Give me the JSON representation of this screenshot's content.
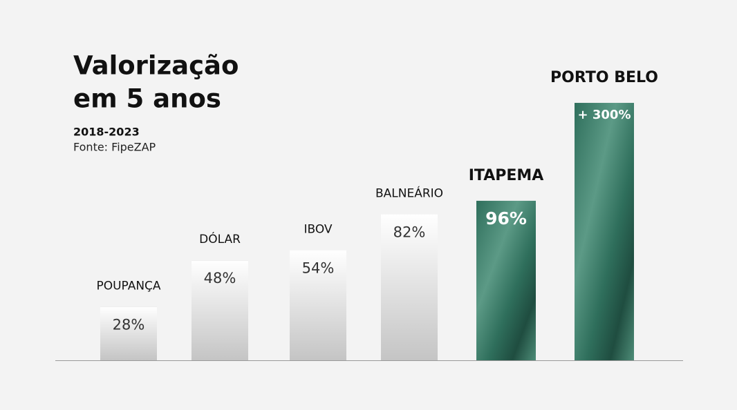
{
  "chart_data": {
    "type": "bar",
    "title": [
      "Valorização",
      "em 5 anos"
    ],
    "subtitle": "2018-2023",
    "source": "Fonte: FipeZAP",
    "categories": [
      "POUPANÇA",
      "DÓLAR",
      "IBOV",
      "BALNEÁRIO",
      "ITAPEMA",
      "PORTO BELO"
    ],
    "values": [
      28,
      48,
      54,
      82,
      96,
      300
    ],
    "value_labels": [
      "28%",
      "48%",
      "54%",
      "82%",
      "96%",
      "+ 300%"
    ],
    "colors": [
      "#ffffff",
      "#ffffff",
      "#ffffff",
      "#ffffff",
      "#2f6f5c",
      "#2f6f5c"
    ],
    "ylim": [
      15,
      320
    ],
    "log_scale": true
  }
}
